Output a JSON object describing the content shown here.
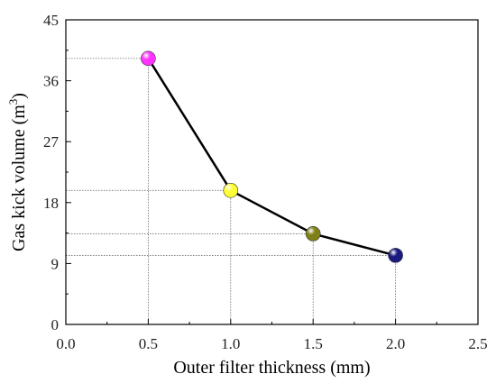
{
  "chart_data": {
    "type": "line",
    "xlabel": "Outer filter thickness (mm)",
    "ylabel_main": "Gas kick volume (m",
    "ylabel_sup": "3",
    "ylabel_close": ")",
    "xlim": [
      0.0,
      2.5
    ],
    "ylim": [
      0,
      45
    ],
    "xticks": [
      "0.0",
      "0.5",
      "1.0",
      "1.5",
      "2.0",
      "2.5"
    ],
    "yticks": [
      "0",
      "9",
      "18",
      "27",
      "36",
      "45"
    ],
    "x": [
      0.5,
      1.0,
      1.5,
      2.0
    ],
    "y": [
      39.3,
      19.8,
      13.4,
      10.2
    ],
    "point_colors": [
      "#ff33ff",
      "#ffff33",
      "#808019",
      "#1a1a80"
    ],
    "line_color": "#000000",
    "reference_lines": true,
    "grid": false,
    "legend": "none"
  }
}
